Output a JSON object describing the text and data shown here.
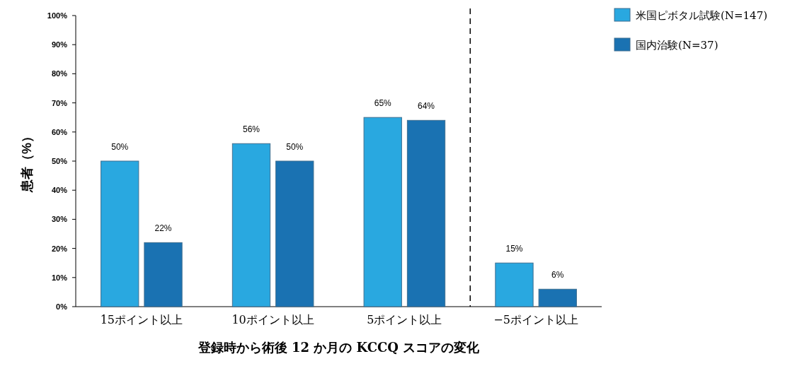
{
  "chart_data": {
    "type": "bar",
    "xlabel": "登録時から術後 12 か月の KCCQ スコアの変化",
    "ylabel": "患者（%）",
    "categories": [
      "15ポイント以上",
      "10ポイント以上",
      "5ポイント以上",
      "−5ポイント以上"
    ],
    "series": [
      {
        "name": "米国ピボタル試験(N=147)",
        "color": "#29a8e0",
        "values": [
          50,
          56,
          65,
          15
        ]
      },
      {
        "name": "国内治験(N=37)",
        "color": "#1a72b2",
        "values": [
          22,
          50,
          64,
          6
        ]
      }
    ],
    "ylim": [
      0,
      100
    ],
    "yticks": [
      {
        "value": 0,
        "label": "0%"
      },
      {
        "value": 10,
        "label": "10%"
      },
      {
        "value": 20,
        "label": "20%"
      },
      {
        "value": 30,
        "label": "30%"
      },
      {
        "value": 40,
        "label": "40%"
      },
      {
        "value": 50,
        "label": "50%"
      },
      {
        "value": 60,
        "label": "60%"
      },
      {
        "value": 70,
        "label": "70%"
      },
      {
        "value": 80,
        "label": "80%"
      },
      {
        "value": 90,
        "label": "90%"
      },
      {
        "value": 100,
        "label": "100%"
      }
    ],
    "value_labels": [
      [
        "50%",
        "56%",
        "65%",
        "15%"
      ],
      [
        "22%",
        "50%",
        "64%",
        "6%"
      ]
    ],
    "grid": false,
    "legend": "top right"
  }
}
